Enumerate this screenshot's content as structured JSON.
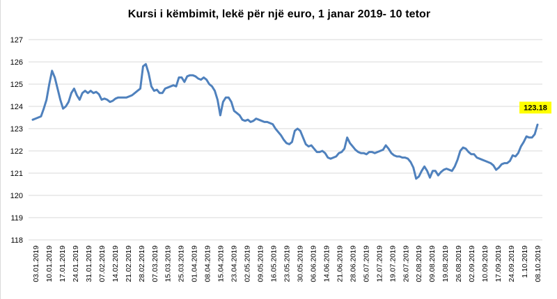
{
  "chart_data": {
    "type": "line",
    "title": "Kursi i këmbimit, lekë për një euro, 1 janar 2019-  10 tetor",
    "xlabel": "",
    "ylabel": "",
    "ylim": [
      118,
      127
    ],
    "yticks": [
      118,
      119,
      120,
      121,
      122,
      123,
      124,
      125,
      126,
      127
    ],
    "grid": "horizontal",
    "legend": "none",
    "x_tick_labels": [
      "03.01.2019",
      "10.01.2019",
      "17.01.2019",
      "24.01.2019",
      "31.01.2019",
      "07.02.2019",
      "14.02.2019",
      "21.02.2019",
      "28.02.2019",
      "07.03.2019",
      "15.03.2019",
      "25.03.2019",
      "01.04.2019",
      "08.04.2019",
      "15.04.2019",
      "23.04.2019",
      "02.05.2019",
      "09.05.2019",
      "16.05.2019",
      "23.05.2019",
      "30.05.2019",
      "06.06.2019",
      "14.06.2019",
      "21.06.2019",
      "28.06.2019",
      "05.07.2019",
      "12.07.2019",
      "19.07.2019",
      "26.07.2019",
      "02.08.2019",
      "09.08.2019",
      "19.08.2019",
      "26.08.2019",
      "02.09.2019",
      "10.09.2019",
      "17.09.2019",
      "24.09.2019",
      "1.10.2019",
      "08.10.2019"
    ],
    "series": [
      {
        "color": "#4f81bd",
        "values": [
          123.4,
          123.45,
          123.5,
          123.55,
          123.9,
          124.3,
          125.0,
          125.6,
          125.3,
          124.8,
          124.3,
          123.9,
          124.0,
          124.2,
          124.6,
          124.8,
          124.5,
          124.3,
          124.6,
          124.7,
          124.6,
          124.7,
          124.6,
          124.65,
          124.55,
          124.3,
          124.35,
          124.3,
          124.2,
          124.25,
          124.35,
          124.4,
          124.4,
          124.4,
          124.4,
          124.45,
          124.5,
          124.6,
          124.7,
          124.8,
          125.8,
          125.9,
          125.5,
          124.9,
          124.7,
          124.75,
          124.6,
          124.6,
          124.8,
          124.85,
          124.9,
          124.95,
          124.9,
          125.3,
          125.3,
          125.1,
          125.35,
          125.4,
          125.4,
          125.35,
          125.25,
          125.2,
          125.3,
          125.2,
          125.0,
          124.9,
          124.7,
          124.3,
          123.6,
          124.2,
          124.4,
          124.4,
          124.2,
          123.8,
          123.7,
          123.6,
          123.4,
          123.35,
          123.4,
          123.3,
          123.35,
          123.45,
          123.4,
          123.35,
          123.3,
          123.3,
          123.25,
          123.2,
          123.0,
          122.85,
          122.7,
          122.5,
          122.35,
          122.3,
          122.4,
          122.9,
          123.0,
          122.9,
          122.6,
          122.3,
          122.2,
          122.25,
          122.1,
          121.95,
          121.95,
          122.0,
          121.9,
          121.7,
          121.65,
          121.7,
          121.75,
          121.9,
          121.95,
          122.1,
          122.6,
          122.35,
          122.2,
          122.05,
          121.95,
          121.9,
          121.9,
          121.85,
          121.95,
          121.95,
          121.9,
          121.95,
          122.0,
          122.05,
          122.25,
          122.1,
          121.9,
          121.8,
          121.75,
          121.75,
          121.7,
          121.7,
          121.65,
          121.5,
          121.25,
          120.75,
          120.85,
          121.1,
          121.3,
          121.1,
          120.8,
          121.1,
          121.1,
          120.9,
          121.05,
          121.15,
          121.2,
          121.15,
          121.1,
          121.3,
          121.6,
          122.0,
          122.15,
          122.1,
          121.95,
          121.85,
          121.85,
          121.7,
          121.65,
          121.6,
          121.55,
          121.5,
          121.45,
          121.35,
          121.15,
          121.25,
          121.4,
          121.45,
          121.45,
          121.55,
          121.8,
          121.75,
          121.9,
          122.2,
          122.4,
          122.65,
          122.6,
          122.6,
          122.75,
          123.18
        ]
      }
    ],
    "annotations": [
      {
        "text": "123.18",
        "target": "last-point",
        "background": "#ffff00"
      }
    ]
  }
}
